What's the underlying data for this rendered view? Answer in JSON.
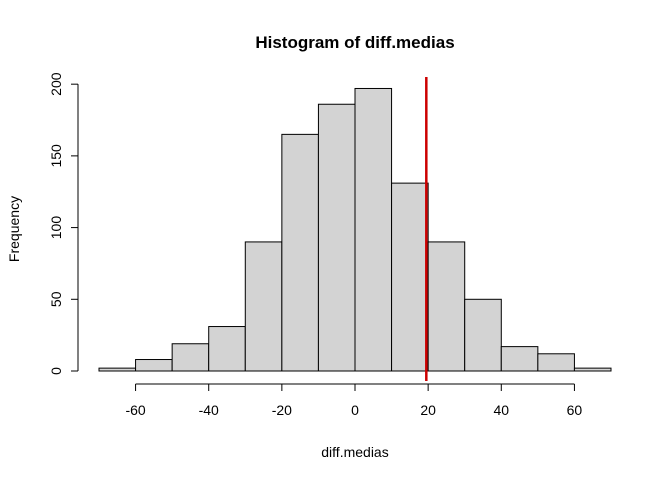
{
  "chart_data": {
    "type": "bar",
    "title": "Histogram of diff.medias",
    "xlabel": "diff.medias",
    "ylabel": "Frequency",
    "bins": [
      {
        "from": -70,
        "to": -60,
        "count": 2
      },
      {
        "from": -60,
        "to": -50,
        "count": 8
      },
      {
        "from": -50,
        "to": -40,
        "count": 19
      },
      {
        "from": -40,
        "to": -30,
        "count": 31
      },
      {
        "from": -30,
        "to": -20,
        "count": 90
      },
      {
        "from": -20,
        "to": -10,
        "count": 165
      },
      {
        "from": -10,
        "to": 0,
        "count": 186
      },
      {
        "from": 0,
        "to": 10,
        "count": 197
      },
      {
        "from": 10,
        "to": 20,
        "count": 131
      },
      {
        "from": 20,
        "to": 30,
        "count": 90
      },
      {
        "from": 30,
        "to": 40,
        "count": 50
      },
      {
        "from": 40,
        "to": 50,
        "count": 17
      },
      {
        "from": 50,
        "to": 60,
        "count": 12
      },
      {
        "from": 60,
        "to": 70,
        "count": 2
      }
    ],
    "xlim": [
      -70,
      70
    ],
    "ylim": [
      0,
      205
    ],
    "x_ticks": [
      -60,
      -40,
      -20,
      0,
      20,
      40,
      60
    ],
    "x_tick_labels": [
      "-60",
      "-40",
      "-20",
      "0",
      "20",
      "40",
      "60"
    ],
    "y_ticks": [
      0,
      50,
      100,
      150,
      200
    ],
    "y_tick_labels": [
      "0",
      "50",
      "100",
      "150",
      "200"
    ],
    "bar_fill": "#d3d3d3",
    "bar_stroke": "#000000",
    "reference_line": {
      "x": 19.5,
      "color": "#cc0000"
    },
    "grid": false,
    "legend": "none"
  }
}
